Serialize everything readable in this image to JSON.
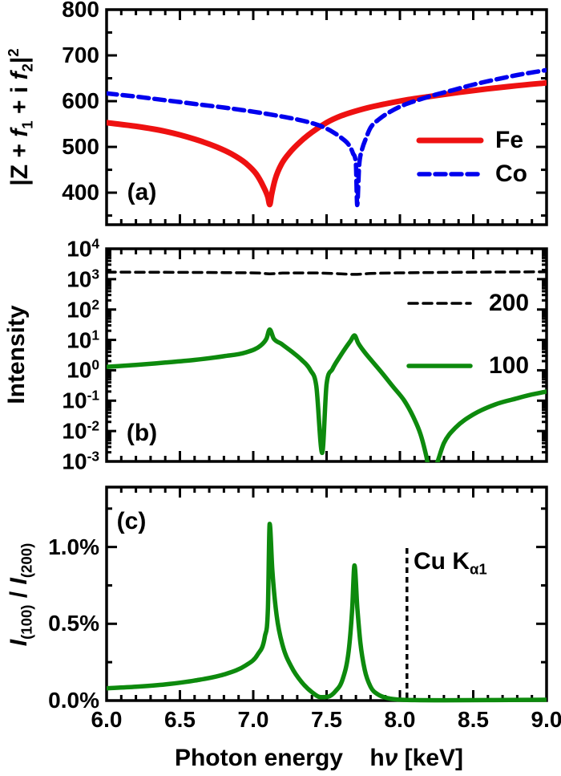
{
  "chart_data": [
    {
      "type": "line",
      "panel_label": "(a)",
      "ylabel": "|Z + f1 + i f2|^2",
      "ylabel_segments": [
        {
          "t": "|Z + "
        },
        {
          "t": "f",
          "i": true
        },
        {
          "t": "1",
          "sub": true
        },
        {
          "t": " + i "
        },
        {
          "t": "f",
          "i": true
        },
        {
          "t": "2",
          "sub": true
        },
        {
          "t": "|"
        },
        {
          "t": "2",
          "sup": true
        }
      ],
      "yscale": "linear",
      "ylim": [
        330,
        800
      ],
      "ytick_values": [
        800,
        700,
        600,
        500,
        400
      ],
      "ytick_labels": [
        "800",
        "700",
        "600",
        "500",
        "400"
      ],
      "yminor_values": [
        750,
        650,
        550,
        450,
        350
      ],
      "legend_position": "right-center",
      "series": [
        {
          "name": "Fe",
          "color": "#ee1111",
          "line": "solid",
          "width": 7,
          "points": [
            [
              6.0,
              553
            ],
            [
              6.2,
              545
            ],
            [
              6.4,
              534
            ],
            [
              6.6,
              517
            ],
            [
              6.75,
              500
            ],
            [
              6.85,
              485
            ],
            [
              6.95,
              464
            ],
            [
              7.02,
              441
            ],
            [
              7.07,
              413
            ],
            [
              7.1,
              390
            ],
            [
              7.112,
              374
            ],
            [
              7.125,
              396
            ],
            [
              7.15,
              430
            ],
            [
              7.19,
              461
            ],
            [
              7.25,
              488
            ],
            [
              7.32,
              511
            ],
            [
              7.4,
              532
            ],
            [
              7.5,
              553
            ],
            [
              7.6,
              568
            ],
            [
              7.75,
              583
            ],
            [
              7.9,
              594
            ],
            [
              8.05,
              603
            ],
            [
              8.2,
              610
            ],
            [
              8.4,
              619
            ],
            [
              8.6,
              627
            ],
            [
              8.8,
              634
            ],
            [
              9.0,
              640
            ]
          ]
        },
        {
          "name": "Co",
          "color": "#0000ee",
          "line": "dashed",
          "dash": "13 7",
          "width": 5.5,
          "points": [
            [
              6.0,
              617
            ],
            [
              6.2,
              610
            ],
            [
              6.4,
              602
            ],
            [
              6.6,
              594
            ],
            [
              6.8,
              586
            ],
            [
              7.0,
              577
            ],
            [
              7.15,
              569
            ],
            [
              7.3,
              560
            ],
            [
              7.4,
              552
            ],
            [
              7.48,
              543
            ],
            [
              7.54,
              533
            ],
            [
              7.6,
              520
            ],
            [
              7.65,
              505
            ],
            [
              7.68,
              486
            ],
            [
              7.7,
              462
            ],
            [
              7.709,
              373
            ],
            [
              7.722,
              458
            ],
            [
              7.74,
              492
            ],
            [
              7.77,
              520
            ],
            [
              7.8,
              542
            ],
            [
              7.86,
              561
            ],
            [
              7.94,
              578
            ],
            [
              8.03,
              592
            ],
            [
              8.13,
              603
            ],
            [
              8.23,
              613
            ],
            [
              8.36,
              624
            ],
            [
              8.5,
              636
            ],
            [
              8.65,
              647
            ],
            [
              8.8,
              657
            ],
            [
              9.0,
              668
            ]
          ]
        }
      ]
    },
    {
      "type": "line",
      "panel_label": "(b)",
      "ylabel": "Intensity",
      "yscale": "log",
      "ylim": [
        0.001,
        10000
      ],
      "ytick_exponents": [
        4,
        3,
        2,
        1,
        0,
        -1,
        -2,
        -3
      ],
      "legend_position": "right-center",
      "series": [
        {
          "name": "200",
          "color": "#000000",
          "line": "dashed",
          "dash": "11 7",
          "width": 3.5,
          "points": [
            [
              6.0,
              1700
            ],
            [
              6.4,
              1680
            ],
            [
              6.8,
              1640
            ],
            [
              7.05,
              1580
            ],
            [
              7.112,
              1500
            ],
            [
              7.2,
              1580
            ],
            [
              7.4,
              1600
            ],
            [
              7.55,
              1540
            ],
            [
              7.69,
              1440
            ],
            [
              7.8,
              1540
            ],
            [
              8.0,
              1610
            ],
            [
              8.4,
              1680
            ],
            [
              9.0,
              1750
            ]
          ]
        },
        {
          "name": "100",
          "color": "#0d8a0d",
          "line": "solid",
          "width": 5.5,
          "points": [
            [
              6.0,
              1.3
            ],
            [
              6.2,
              1.5
            ],
            [
              6.4,
              1.8
            ],
            [
              6.6,
              2.2
            ],
            [
              6.8,
              2.9
            ],
            [
              6.95,
              3.9
            ],
            [
              7.05,
              6.5
            ],
            [
              7.09,
              11
            ],
            [
              7.112,
              22
            ],
            [
              7.14,
              11
            ],
            [
              7.19,
              7.5
            ],
            [
              7.26,
              4.2
            ],
            [
              7.33,
              2.2
            ],
            [
              7.39,
              1.0
            ],
            [
              7.43,
              0.3
            ],
            [
              7.47,
              0.0019
            ],
            [
              7.5,
              0.35
            ],
            [
              7.54,
              1.1
            ],
            [
              7.59,
              2.8
            ],
            [
              7.63,
              5.5
            ],
            [
              7.665,
              9.5
            ],
            [
              7.69,
              14
            ],
            [
              7.715,
              8
            ],
            [
              7.75,
              4.5
            ],
            [
              7.81,
              2.0
            ],
            [
              7.88,
              0.8
            ],
            [
              7.95,
              0.3
            ],
            [
              8.03,
              0.1
            ],
            [
              8.09,
              0.03
            ],
            [
              8.14,
              0.008
            ],
            [
              8.18,
              0.0015
            ],
            [
              8.21,
              0.0003
            ],
            [
              8.25,
              0.0008
            ],
            [
              8.3,
              0.004
            ],
            [
              8.38,
              0.013
            ],
            [
              8.5,
              0.035
            ],
            [
              8.65,
              0.075
            ],
            [
              8.8,
              0.12
            ],
            [
              8.9,
              0.16
            ],
            [
              9.0,
              0.2
            ]
          ]
        }
      ]
    },
    {
      "type": "line",
      "panel_label": "(c)",
      "ylabel": "I(100) / I(200)",
      "ylabel_segments": [
        {
          "t": "I",
          "i": true
        },
        {
          "t": "(100)",
          "sub": true
        },
        {
          "t": " / "
        },
        {
          "t": "I",
          "i": true
        },
        {
          "t": "(200)",
          "sub": true
        }
      ],
      "yscale": "linear",
      "ylim": [
        0,
        1.39
      ],
      "ytick_values": [
        1.0,
        0.5,
        0.0
      ],
      "ytick_labels": [
        "1.0%",
        "0.5%",
        "0.0%"
      ],
      "yminor_values": [
        1.25,
        0.75,
        0.25
      ],
      "series": [
        {
          "name": "ratio_100_200",
          "color": "#0d8a0d",
          "line": "solid",
          "width": 5.5,
          "points": [
            [
              6.0,
              0.08
            ],
            [
              6.2,
              0.09
            ],
            [
              6.4,
              0.105
            ],
            [
              6.6,
              0.13
            ],
            [
              6.8,
              0.17
            ],
            [
              6.95,
              0.23
            ],
            [
              7.03,
              0.3
            ],
            [
              7.08,
              0.42
            ],
            [
              7.1,
              0.6
            ],
            [
              7.112,
              1.15
            ],
            [
              7.13,
              0.85
            ],
            [
              7.16,
              0.55
            ],
            [
              7.2,
              0.36
            ],
            [
              7.26,
              0.22
            ],
            [
              7.33,
              0.12
            ],
            [
              7.4,
              0.055
            ],
            [
              7.46,
              0.022
            ],
            [
              7.51,
              0.025
            ],
            [
              7.56,
              0.06
            ],
            [
              7.61,
              0.14
            ],
            [
              7.65,
              0.32
            ],
            [
              7.675,
              0.6
            ],
            [
              7.69,
              0.88
            ],
            [
              7.71,
              0.6
            ],
            [
              7.73,
              0.38
            ],
            [
              7.76,
              0.2
            ],
            [
              7.8,
              0.09
            ],
            [
              7.85,
              0.04
            ],
            [
              7.92,
              0.015
            ],
            [
              8.0,
              0.006
            ],
            [
              8.1,
              0.003
            ],
            [
              8.3,
              0.002
            ],
            [
              8.6,
              0.003
            ],
            [
              9.0,
              0.005
            ]
          ]
        }
      ],
      "annotation": {
        "label": "Cu Ka1",
        "segments": [
          {
            "t": "Cu K"
          },
          {
            "t": "α1",
            "sub": true
          }
        ],
        "x": 8.048,
        "line": "dashed"
      }
    }
  ],
  "x_axis": {
    "xlabel": "Photon energy  hν [keV]",
    "title_segments": [
      {
        "t": "Photon energy    h"
      },
      {
        "t": "ν",
        "i": true
      },
      {
        "t": " [keV]"
      }
    ],
    "min": 6.0,
    "max": 9.0,
    "major_tick_step": 0.5,
    "minor_tick_step": 0.1,
    "tick_labels": [
      "6.0",
      "6.5",
      "7.0",
      "7.5",
      "8.0",
      "8.5",
      "9.0"
    ]
  }
}
